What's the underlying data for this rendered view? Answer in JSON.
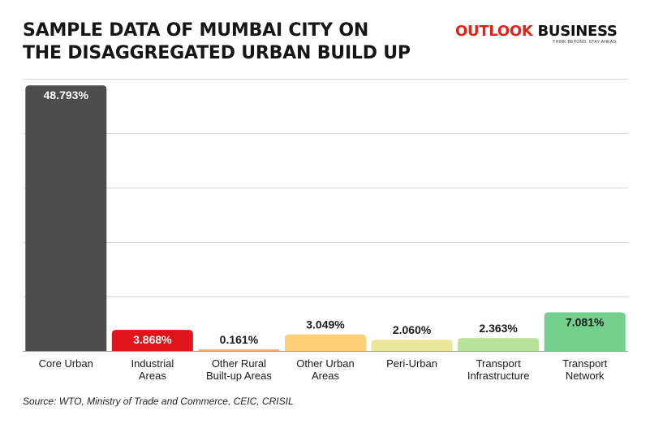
{
  "title_lines": [
    "SAMPLE DATA OF MUMBAI CITY ON",
    "THE DISAGGREGATED URBAN BUILD UP"
  ],
  "brand": {
    "part1": "OUTLOOK",
    "part2": "BUSINESS",
    "tagline": "THINK BEYOND. STAY AHEAD."
  },
  "source": "Source: WTO, Ministry of Trade and Commerce, CEIC, CRISIL",
  "colors": {
    "brand_red": "#e2231a",
    "gridline": "#d9d9d9",
    "baseline": "#9a9a9a"
  },
  "chart_data": {
    "type": "bar",
    "title": "SAMPLE DATA OF MUMBAI CITY ON THE DISAGGREGATED URBAN BUILD UP",
    "categories": [
      [
        "Core Urban"
      ],
      [
        "Industrial",
        "Areas"
      ],
      [
        "Other Rural",
        "Built-up Areas"
      ],
      [
        "Other Urban",
        "Areas"
      ],
      [
        "Peri-Urban"
      ],
      [
        "Transport",
        "Infrastructure"
      ],
      [
        "Transport",
        "Network"
      ]
    ],
    "values": [
      48.793,
      3.868,
      0.161,
      3.049,
      2.06,
      2.363,
      7.081
    ],
    "value_labels": [
      "48.793%",
      "3.868%",
      "0.161%",
      "3.049%",
      "2.060%",
      "2.363%",
      "7.081%"
    ],
    "bar_colors": [
      "#4d4d4d",
      "#e0141b",
      "#f4b183",
      "#ffcf7a",
      "#ebe79a",
      "#b6e29a",
      "#72cf8c"
    ],
    "label_colors": [
      "#ffffff",
      "#ffffff",
      "#1a1a1a",
      "#1a1a1a",
      "#1a1a1a",
      "#1a1a1a",
      "#1a1a1a"
    ],
    "label_inside": [
      true,
      true,
      false,
      false,
      false,
      false,
      true
    ],
    "ylim": [
      0,
      50
    ],
    "gridlines": [
      10,
      20,
      30,
      40,
      50
    ],
    "grid": true,
    "legend": "none",
    "xlabel": "",
    "ylabel": ""
  }
}
